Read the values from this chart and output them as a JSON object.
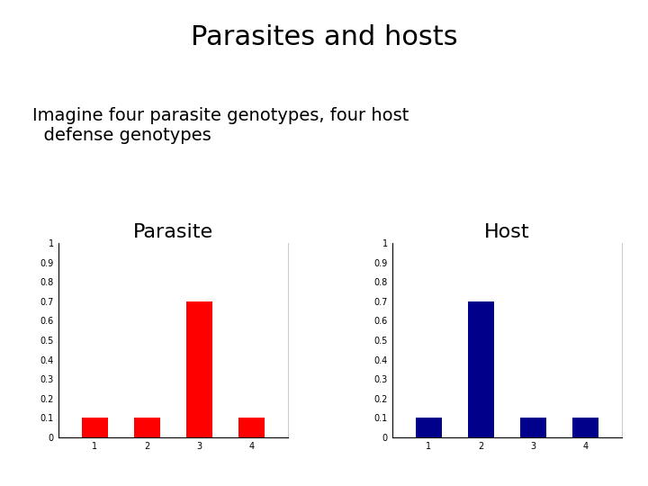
{
  "title": "Parasites and hosts",
  "subtitle_line1": "Imagine four parasite genotypes, four host",
  "subtitle_line2": "  defense genotypes",
  "parasite_title": "Parasite",
  "host_title": "Host",
  "parasite_values": [
    0.1,
    0.1,
    0.7,
    0.1
  ],
  "host_values": [
    0.1,
    0.7,
    0.1,
    0.1
  ],
  "categories": [
    1,
    2,
    3,
    4
  ],
  "parasite_color": "#ff0000",
  "host_color": "#00008b",
  "background_color": "#ffffff",
  "ylim": [
    0,
    1.0
  ],
  "yticks": [
    0,
    0.1,
    0.2,
    0.3,
    0.4,
    0.5,
    0.6,
    0.7,
    0.8,
    0.9,
    1
  ],
  "ytick_labels": [
    "0",
    "0.1",
    "0.2",
    "0.3",
    "0.4",
    "0.5",
    "0.6",
    "0.7",
    "0.8",
    "0.9",
    "1"
  ],
  "title_fontsize": 22,
  "subtitle_fontsize": 14,
  "chart_title_fontsize": 16,
  "tick_fontsize": 7
}
